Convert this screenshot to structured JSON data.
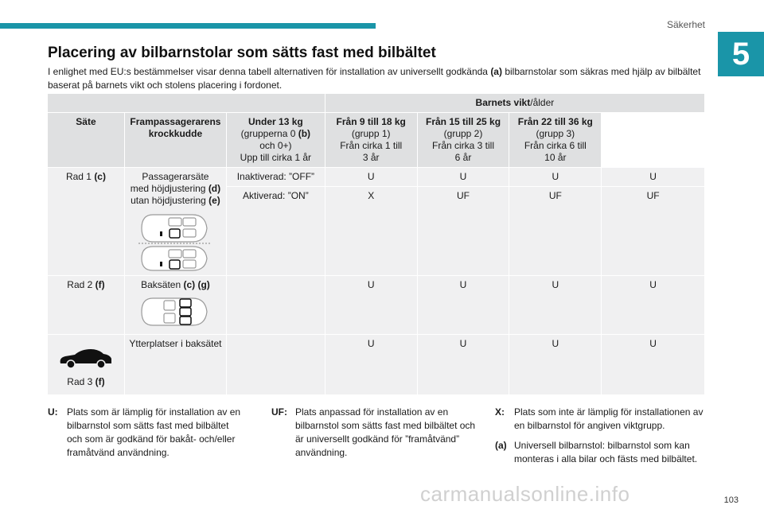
{
  "header": {
    "section": "Säkerhet",
    "chapter": "5",
    "accent": "#1a95a8"
  },
  "title": "Placering av bilbarnstolar som sätts fast med bilbältet",
  "intro": {
    "t1": "I enlighet med EU:s bestämmelser visar denna tabell alternativen för installation av universellt godkända ",
    "t1b": "(a)",
    "t2": " bilbarnstolar som säkras med hjälp av bilbältet baserat på barnets vikt och stolens placering i fordonet."
  },
  "table": {
    "group_header": {
      "bold": "Barnets vikt",
      "rest": "/ålder"
    },
    "col_seat": "Säte",
    "col_airbag": "Frampassagerarens krockkudde",
    "weights": [
      {
        "title": "Under 13 kg",
        "l1": "(grupperna 0 ",
        "l1b": "(b)",
        "l2": "och 0+)",
        "l3": "Upp till cirka 1 år"
      },
      {
        "title": "Från 9 till 18 kg",
        "l1": "(grupp 1)",
        "l2": "Från cirka 1 till",
        "l3": "3 år"
      },
      {
        "title": "Från 15 till 25 kg",
        "l1": "(grupp 2)",
        "l2": "Från cirka 3 till",
        "l3": "6 år"
      },
      {
        "title": "Från 22 till 36 kg",
        "l1": "(grupp 3)",
        "l2": "Från cirka 6 till",
        "l3": "10 år"
      }
    ],
    "row1": {
      "label": "Rad 1 ",
      "label_b": "(c)",
      "seat1": "Passagerarsäte",
      "seat2": "med höjdjustering ",
      "seat2b": "(d)",
      "seat3": "utan höjdjustering ",
      "seat3b": "(e)",
      "airbag_off": "Inaktiverad: ”OFF”",
      "airbag_on": "Aktiverad: ”ON”",
      "off_values": [
        "U",
        "U",
        "U",
        "U"
      ],
      "on_values": [
        "X",
        "UF",
        "UF",
        "UF"
      ]
    },
    "row2": {
      "label": "Rad 2 ",
      "label_b": "(f)",
      "seat": "Baksäten ",
      "seat_b": "(c) (g)",
      "values": [
        "U",
        "U",
        "U",
        "U"
      ]
    },
    "row3": {
      "label": "Rad 3 ",
      "label_b": "(f)",
      "seat": "Ytterplatser i baksätet",
      "values": [
        "U",
        "U",
        "U",
        "U"
      ]
    }
  },
  "legend": {
    "u": {
      "key": "U:",
      "text": "Plats som är lämplig för installation av en bilbarnstol som sätts fast med bilbältet och som är godkänd för bakåt- och/eller framåtvänd användning."
    },
    "uf": {
      "key": "UF:",
      "text": "Plats anpassad för installation av en bilbarnstol som sätts fast med bilbältet och är universellt godkänd för ”framåtvänd” användning."
    },
    "x": {
      "key": "X:",
      "text": "Plats som inte är lämplig för installationen av en bilbarnstol för angiven viktgrupp."
    },
    "a": {
      "key": "(a)",
      "text": "Universell bilbarnstol: bilbarnstol som kan monteras i alla bilar och fästs med bilbältet."
    }
  },
  "page_number": "103",
  "watermark": "carmanualsonline.info"
}
